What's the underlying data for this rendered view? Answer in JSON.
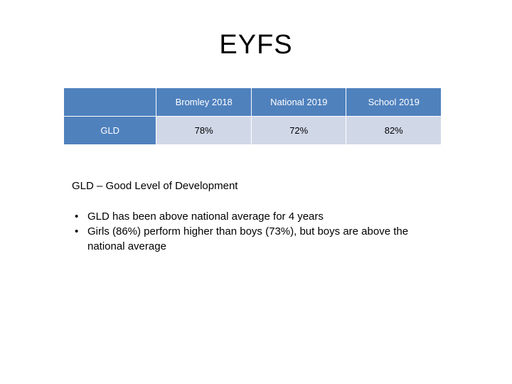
{
  "slide": {
    "title": "EYFS"
  },
  "table": {
    "corner": "",
    "columns": [
      "Bromley 2018",
      "National 2019",
      "School 2019"
    ],
    "rows": [
      {
        "label": "GLD",
        "values": [
          "78%",
          "72%",
          "82%"
        ]
      }
    ]
  },
  "definition": "GLD – Good Level of Development",
  "bullets": [
    "GLD has been above national average for 4 years",
    "Girls (86%) perform higher than boys (73%), but boys are above the national average"
  ],
  "colors": {
    "header_bg": "#4f81bd",
    "cell_bg": "#d0d8e8"
  }
}
